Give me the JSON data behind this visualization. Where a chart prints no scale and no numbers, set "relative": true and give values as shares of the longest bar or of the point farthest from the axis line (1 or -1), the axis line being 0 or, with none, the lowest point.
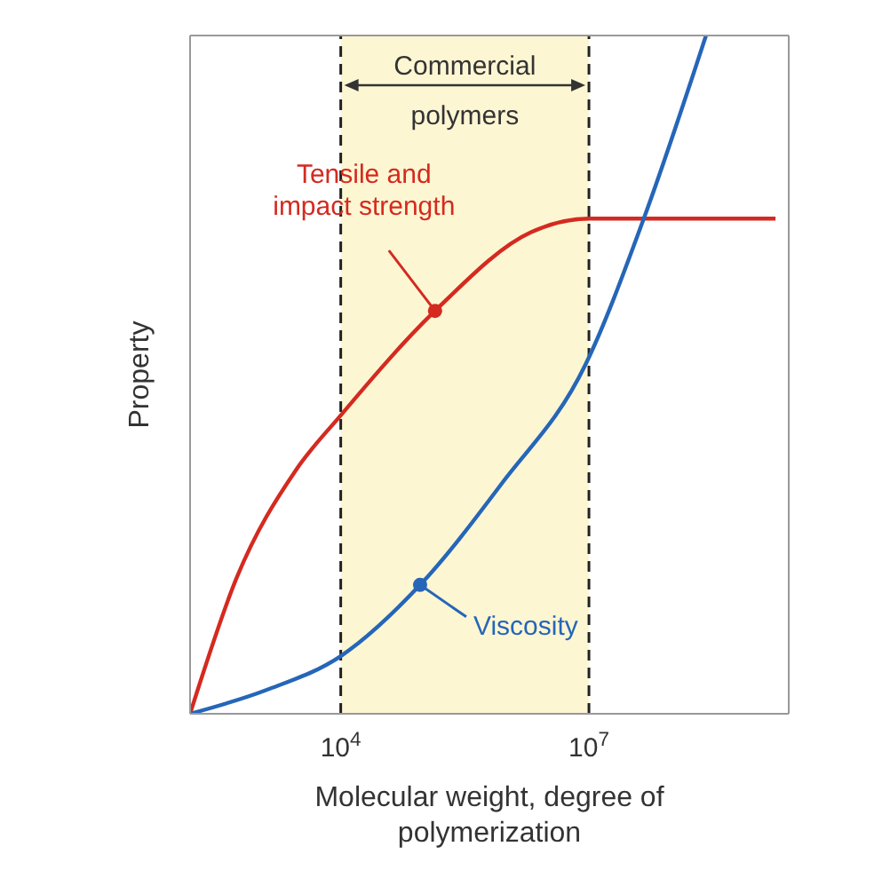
{
  "chart_data": {
    "type": "line",
    "relative": true,
    "log": "x",
    "xlabel": "Molecular weight, degree of polymerization",
    "ylabel": "Property",
    "tick_labels": "x",
    "xlim": [
      151,
      2600000000
    ],
    "xticks": [
      {
        "value": 10000,
        "label": "10$^{4}$"
      },
      {
        "value": 10000000,
        "label": "10$^{7}$"
      }
    ],
    "series": [
      {
        "color": "#d42a20",
        "x": [
          151,
          550,
          2900,
          10000,
          138000,
          2000000,
          10000000,
          1800000000
        ],
        "values": [
          0,
          0.2,
          0.36,
          0.44,
          0.594,
          0.71,
          0.73,
          0.73
        ]
      },
      {
        "color": "#2566b8",
        "x": [
          151,
          1260,
          10000,
          91000,
          890000,
          9100000,
          46000000,
          260000000
        ],
        "values": [
          0,
          0.035,
          0.085,
          0.19,
          0.34,
          0.515,
          0.73,
          1
        ]
      }
    ],
    "bands": [
      {
        "axis": "x",
        "from": 10000,
        "to": 10000000,
        "label": "Commercial polymers",
        "color": "#fdf6d3"
      }
    ],
    "ref_lines": [
      {
        "axis": "x",
        "value": 10000,
        "color": "#222222",
        "line_style": "dashed"
      },
      {
        "axis": "x",
        "value": 10000000,
        "color": "#222222",
        "line_style": "dashed"
      }
    ],
    "annotations": [
      {
        "text": "Tensile and impact strength",
        "x": 138000,
        "y": 0.594
      },
      {
        "text": "Viscosity",
        "x": 91000,
        "y": 0.19
      }
    ]
  }
}
